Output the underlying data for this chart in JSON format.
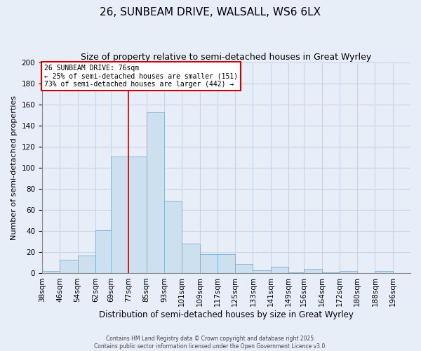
{
  "title": "26, SUNBEAM DRIVE, WALSALL, WS6 6LX",
  "subtitle": "Size of property relative to semi-detached houses in Great Wyrley",
  "xlabel": "Distribution of semi-detached houses by size in Great Wyrley",
  "ylabel": "Number of semi-detached properties",
  "bin_labels": [
    "38sqm",
    "46sqm",
    "54sqm",
    "62sqm",
    "69sqm",
    "77sqm",
    "85sqm",
    "93sqm",
    "101sqm",
    "109sqm",
    "117sqm",
    "125sqm",
    "133sqm",
    "141sqm",
    "149sqm",
    "156sqm",
    "164sqm",
    "172sqm",
    "180sqm",
    "188sqm",
    "196sqm"
  ],
  "bin_edges": [
    38,
    46,
    54,
    62,
    69,
    77,
    85,
    93,
    101,
    109,
    117,
    125,
    133,
    141,
    149,
    156,
    164,
    172,
    180,
    188,
    196
  ],
  "bar_heights": [
    2,
    13,
    17,
    41,
    111,
    111,
    153,
    69,
    28,
    18,
    18,
    9,
    3,
    6,
    1,
    4,
    1,
    2,
    0,
    2
  ],
  "bar_color": "#cce0f0",
  "bar_edgecolor": "#7aafd4",
  "vline_x": 77,
  "vline_color": "#cc0000",
  "ylim": [
    0,
    200
  ],
  "yticks": [
    0,
    20,
    40,
    60,
    80,
    100,
    120,
    140,
    160,
    180,
    200
  ],
  "annotation_title": "26 SUNBEAM DRIVE: 76sqm",
  "annotation_line1": "← 25% of semi-detached houses are smaller (151)",
  "annotation_line2": "73% of semi-detached houses are larger (442) →",
  "annotation_box_facecolor": "#ffffff",
  "annotation_box_edgecolor": "#cc0000",
  "footer1": "Contains HM Land Registry data © Crown copyright and database right 2025.",
  "footer2": "Contains public sector information licensed under the Open Government Licence v3.0.",
  "bg_color": "#e8eef8",
  "grid_color": "#c8d4e8",
  "title_fontsize": 11,
  "subtitle_fontsize": 9,
  "xlabel_fontsize": 8.5,
  "ylabel_fontsize": 8,
  "tick_fontsize": 7.5,
  "annotation_fontsize": 7,
  "footer_fontsize": 5.5
}
